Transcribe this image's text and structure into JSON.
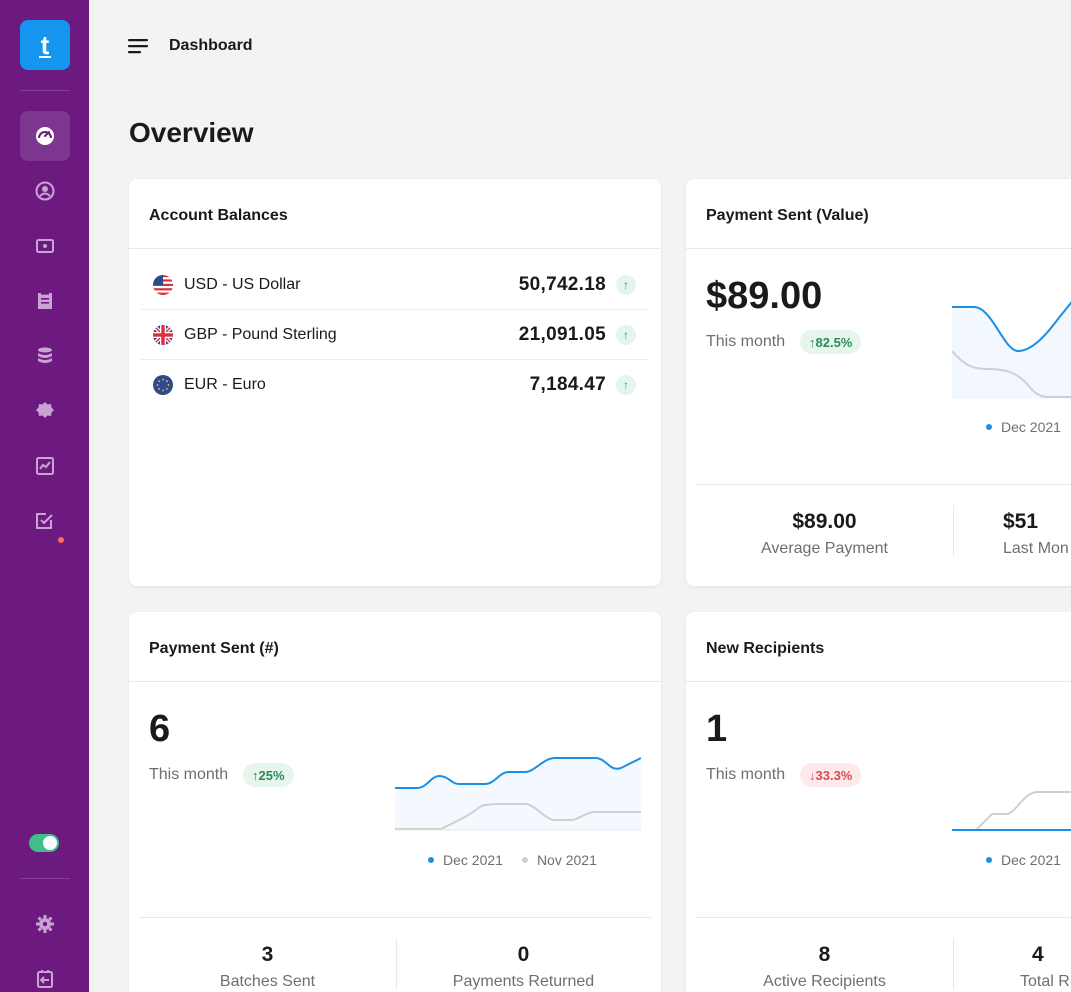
{
  "app": {
    "logo_letter": "t"
  },
  "sidebar": {
    "items": [
      {
        "name": "dashboard-icon",
        "active": true
      },
      {
        "name": "user-circle-icon"
      },
      {
        "name": "payment-card-icon"
      },
      {
        "name": "receipt-icon"
      },
      {
        "name": "database-icon"
      },
      {
        "name": "badge-icon"
      },
      {
        "name": "chart-icon"
      },
      {
        "name": "task-check-icon",
        "has_notification": true
      }
    ],
    "toggle_on": true,
    "bottom_items": [
      {
        "name": "gear-icon"
      },
      {
        "name": "logout-icon"
      }
    ]
  },
  "header": {
    "breadcrumb": "Dashboard"
  },
  "page": {
    "title": "Overview"
  },
  "account_balances": {
    "title": "Account Balances",
    "rows": [
      {
        "flag": "us-flag-icon",
        "label": "USD - US Dollar",
        "value": "50,742.18"
      },
      {
        "flag": "uk-flag-icon",
        "label": "GBP - Pound Sterling",
        "value": "21,091.05"
      },
      {
        "flag": "eu-flag-icon",
        "label": "EUR - Euro",
        "value": "7,184.47"
      }
    ]
  },
  "payment_value": {
    "title": "Payment Sent (Value)",
    "amount": "$89.00",
    "month_label": "This month",
    "change": "↑82.5%",
    "legend": [
      "Dec 2021"
    ],
    "stats": [
      {
        "value": "$89.00",
        "label": "Average Payment"
      },
      {
        "value": "$51",
        "label": "Last Mon"
      }
    ]
  },
  "payment_count": {
    "title": "Payment Sent (#)",
    "amount": "6",
    "month_label": "This month",
    "change": "↑25%",
    "legend": [
      "Dec 2021",
      "Nov 2021"
    ],
    "stats": [
      {
        "value": "3",
        "label": "Batches Sent"
      },
      {
        "value": "0",
        "label": "Payments Returned"
      }
    ]
  },
  "new_recipients": {
    "title": "New Recipients",
    "amount": "1",
    "month_label": "This month",
    "change": "↓33.3%",
    "legend": [
      "Dec 2021"
    ],
    "stats": [
      {
        "value": "8",
        "label": "Active Recipients"
      },
      {
        "value": "4",
        "label": "Total R"
      }
    ]
  },
  "colors": {
    "sidebar": "#6c1a80",
    "accent": "#1496f0",
    "current_series": "#1a8fe8",
    "previous_series": "#cfcfcf",
    "positive": "#2d8a58",
    "negative": "#d94a52"
  }
}
